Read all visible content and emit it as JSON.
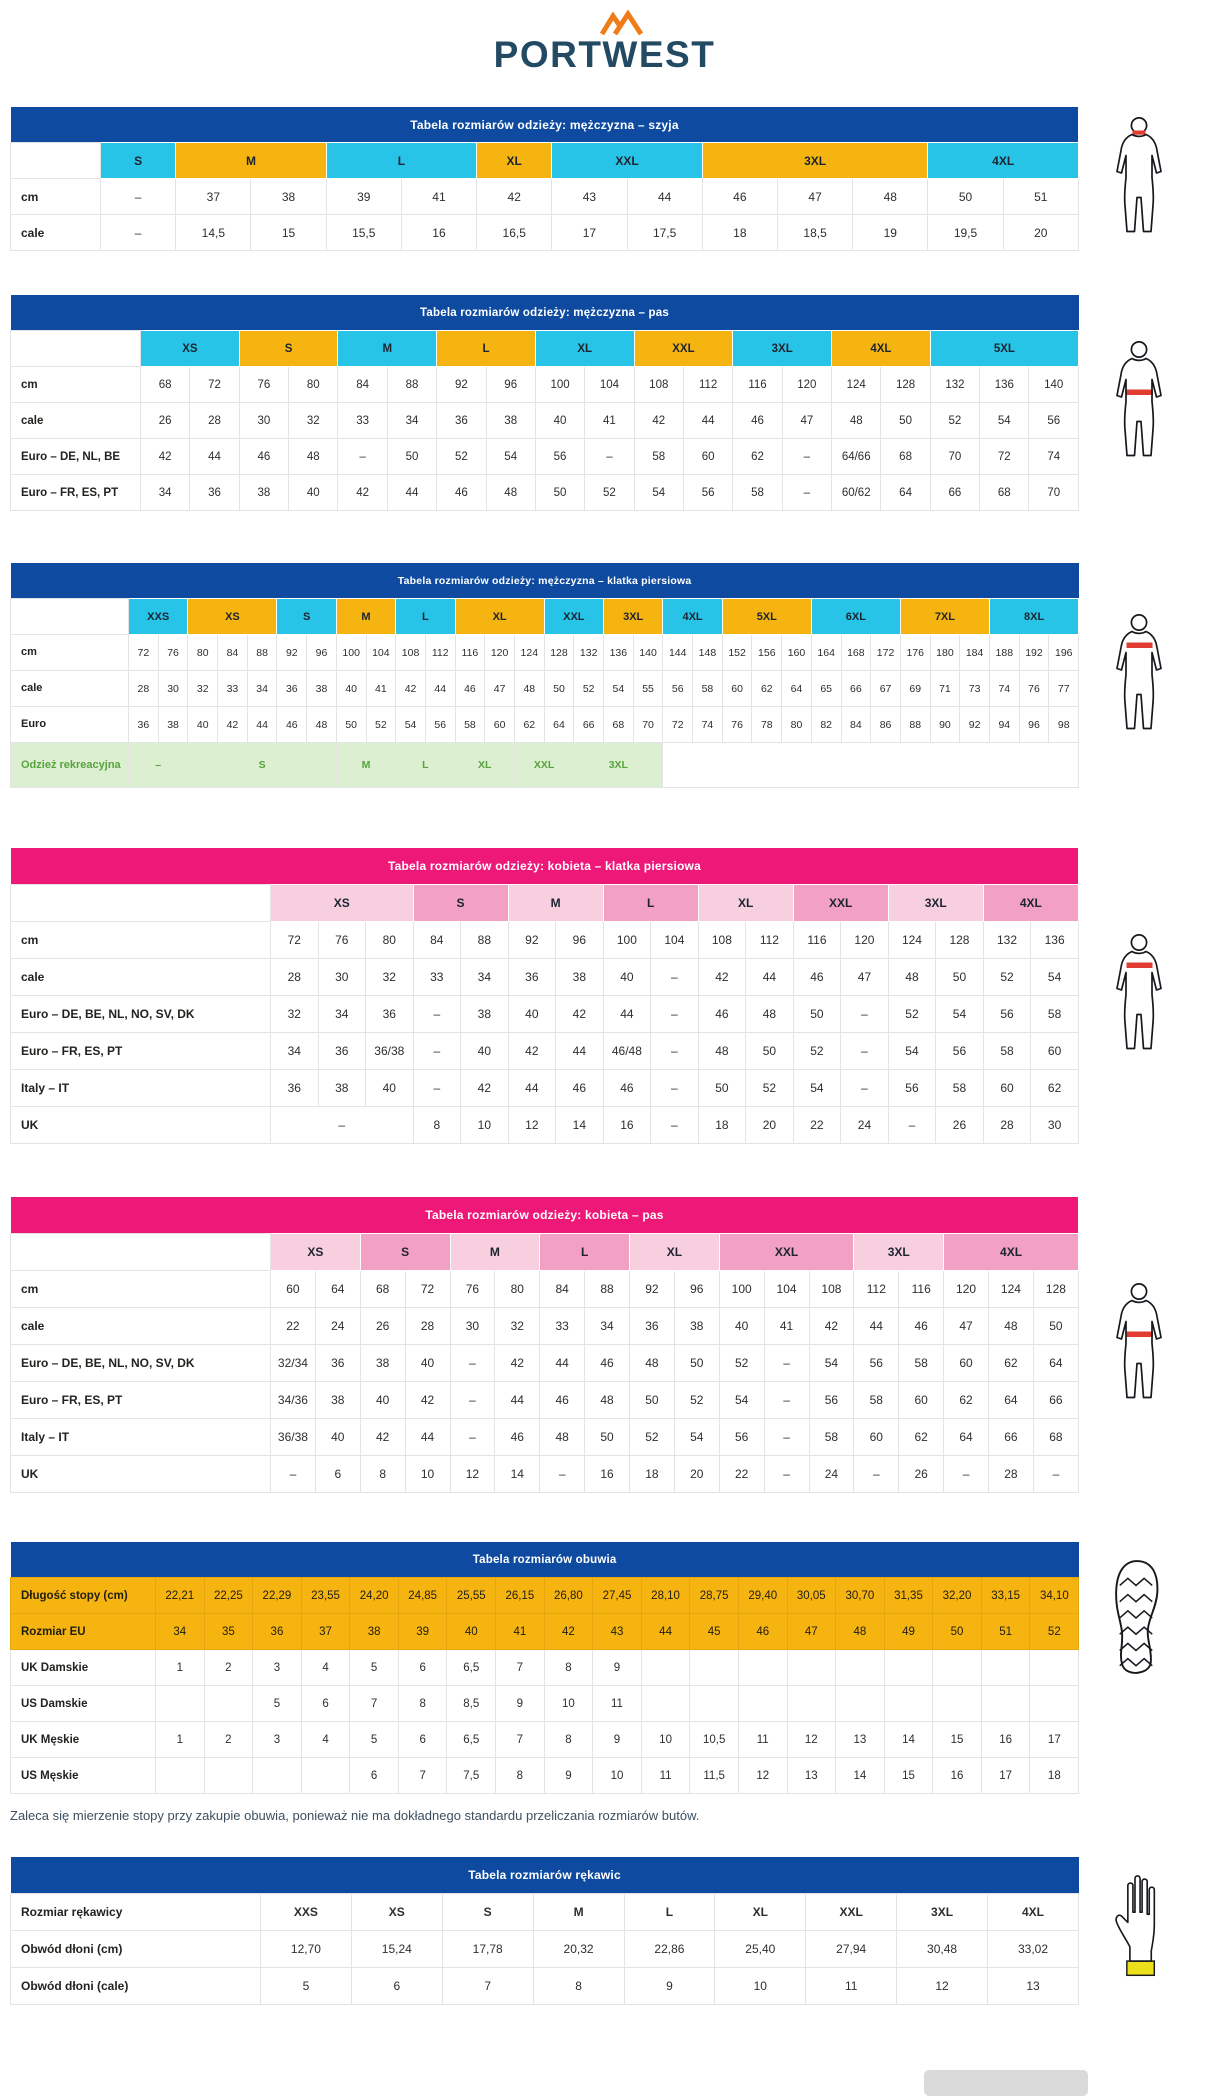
{
  "logo": {
    "brand": "PORTWEST"
  },
  "note": "Zaleca się mierzenie stopy przy zakupie obuwia, ponieważ nie ma dokładnego standardu przeliczania rozmiarów butów.",
  "colors": {
    "title_blue": "#0d4aa0",
    "title_pink": "#ee1878",
    "cyan": "#27c4e8",
    "amber": "#f6b411",
    "pink_light": "#f8cfdf",
    "pink_dark": "#f2a0c3",
    "rec_green_bg": "#dcefd0",
    "rec_green_text": "#57a33e",
    "highlight_red": "#e03c31",
    "glove_cuff_yellow": "#ecdf1b",
    "logo_navy": "#234a63",
    "logo_orange": "#ef7c16"
  },
  "tables": [
    {
      "category": "men",
      "figure": "male-neck",
      "title": "Tabela rozmiarów odzieży: mężczyzna – szyja",
      "header": [
        {
          "label": "S",
          "span": 1
        },
        {
          "label": "M",
          "span": 2
        },
        {
          "label": "L",
          "span": 2
        },
        {
          "label": "XL",
          "span": 1
        },
        {
          "label": "XXL",
          "span": 2
        },
        {
          "label": "3XL",
          "span": 3
        },
        {
          "label": "4XL",
          "span": 2
        }
      ],
      "rows": [
        {
          "label": "cm",
          "cells": [
            "–",
            "37",
            "38",
            "39",
            "41",
            "42",
            "43",
            "44",
            "46",
            "47",
            "48",
            "50",
            "51"
          ]
        },
        {
          "label": "cale",
          "cells": [
            "–",
            "14,5",
            "15",
            "15,5",
            "16",
            "16,5",
            "17",
            "17,5",
            "18",
            "18,5",
            "19",
            "19,5",
            "20"
          ]
        }
      ]
    },
    {
      "category": "men",
      "figure": "male-waist",
      "title": "Tabela rozmiarów odzieży: mężczyzna – pas",
      "header": [
        {
          "label": "XS",
          "span": 2
        },
        {
          "label": "S",
          "span": 2
        },
        {
          "label": "M",
          "span": 2
        },
        {
          "label": "L",
          "span": 2
        },
        {
          "label": "XL",
          "span": 2
        },
        {
          "label": "XXL",
          "span": 2
        },
        {
          "label": "3XL",
          "span": 2
        },
        {
          "label": "4XL",
          "span": 2
        },
        {
          "label": "5XL",
          "span": 3
        }
      ],
      "rows": [
        {
          "label": "cm",
          "cells": [
            "68",
            "72",
            "76",
            "80",
            "84",
            "88",
            "92",
            "96",
            "100",
            "104",
            "108",
            "112",
            "116",
            "120",
            "124",
            "128",
            "132",
            "136",
            "140"
          ]
        },
        {
          "label": "cale",
          "cells": [
            "26",
            "28",
            "30",
            "32",
            "33",
            "34",
            "36",
            "38",
            "40",
            "41",
            "42",
            "44",
            "46",
            "47",
            "48",
            "50",
            "52",
            "54",
            "56"
          ]
        },
        {
          "label": "Euro – DE, NL, BE",
          "cells": [
            "42",
            "44",
            "46",
            "48",
            "–",
            "50",
            "52",
            "54",
            "56",
            "–",
            "58",
            "60",
            "62",
            "–",
            "64/66",
            "68",
            "70",
            "72",
            "74"
          ]
        },
        {
          "label": "Euro – FR, ES, PT",
          "cells": [
            "34",
            "36",
            "38",
            "40",
            "42",
            "44",
            "46",
            "48",
            "50",
            "52",
            "54",
            "56",
            "58",
            "–",
            "60/62",
            "64",
            "66",
            "68",
            "70"
          ]
        }
      ]
    },
    {
      "category": "men",
      "figure": "male-chest",
      "title": "Tabela rozmiarów odzieży: mężczyzna – klatka piersiowa",
      "header": [
        {
          "label": "XXS",
          "span": 2
        },
        {
          "label": "XS",
          "span": 3
        },
        {
          "label": "S",
          "span": 2
        },
        {
          "label": "M",
          "span": 2
        },
        {
          "label": "L",
          "span": 2
        },
        {
          "label": "XL",
          "span": 3
        },
        {
          "label": "XXL",
          "span": 2
        },
        {
          "label": "3XL",
          "span": 2
        },
        {
          "label": "4XL",
          "span": 2
        },
        {
          "label": "5XL",
          "span": 3
        },
        {
          "label": "6XL",
          "span": 3
        },
        {
          "label": "7XL",
          "span": 3
        },
        {
          "label": "8XL",
          "span": 3
        }
      ],
      "rows": [
        {
          "label": "cm",
          "cells": [
            "72",
            "76",
            "80",
            "84",
            "88",
            "92",
            "96",
            "100",
            "104",
            "108",
            "112",
            "116",
            "120",
            "124",
            "128",
            "132",
            "136",
            "140",
            "144",
            "148",
            "152",
            "156",
            "160",
            "164",
            "168",
            "172",
            "176",
            "180",
            "184",
            "188",
            "192",
            "196"
          ]
        },
        {
          "label": "cale",
          "cells": [
            "28",
            "30",
            "32",
            "33",
            "34",
            "36",
            "38",
            "40",
            "41",
            "42",
            "44",
            "46",
            "47",
            "48",
            "50",
            "52",
            "54",
            "55",
            "56",
            "58",
            "60",
            "62",
            "64",
            "65",
            "66",
            "67",
            "69",
            "71",
            "73",
            "74",
            "76",
            "77"
          ]
        },
        {
          "label": "Euro",
          "cells": [
            "36",
            "38",
            "40",
            "42",
            "44",
            "46",
            "48",
            "50",
            "52",
            "54",
            "56",
            "58",
            "60",
            "62",
            "64",
            "66",
            "68",
            "70",
            "72",
            "74",
            "76",
            "78",
            "80",
            "82",
            "84",
            "86",
            "88",
            "90",
            "92",
            "94",
            "96",
            "98"
          ]
        },
        {
          "label": "Odzież rekreacyjna",
          "highlight": "green",
          "cells": [
            {
              "v": "–",
              "span": 2
            },
            {
              "v": "S",
              "span": 5
            },
            {
              "v": "M",
              "span": 2
            },
            {
              "v": "L",
              "span": 2
            },
            {
              "v": "XL",
              "span": 2
            },
            {
              "v": "XXL",
              "span": 2
            },
            {
              "v": "3XL",
              "span": 3
            },
            {
              "v": "",
              "span": 14
            }
          ]
        }
      ]
    },
    {
      "category": "women",
      "figure": "female-chest",
      "title": "Tabela rozmiarów odzieży: kobieta – klatka piersiowa",
      "header": [
        {
          "label": "XS",
          "span": 3
        },
        {
          "label": "S",
          "span": 2
        },
        {
          "label": "M",
          "span": 2
        },
        {
          "label": "L",
          "span": 2
        },
        {
          "label": "XL",
          "span": 2
        },
        {
          "label": "XXL",
          "span": 2
        },
        {
          "label": "3XL",
          "span": 2
        },
        {
          "label": "4XL",
          "span": 2
        }
      ],
      "rows": [
        {
          "label": "cm",
          "cells": [
            "72",
            "76",
            "80",
            "84",
            "88",
            "92",
            "96",
            "100",
            "104",
            "108",
            "112",
            "116",
            "120",
            "124",
            "128",
            "132",
            "136"
          ]
        },
        {
          "label": "cale",
          "cells": [
            "28",
            "30",
            "32",
            "33",
            "34",
            "36",
            "38",
            "40",
            "–",
            "42",
            "44",
            "46",
            "47",
            "48",
            "50",
            "52",
            "54"
          ]
        },
        {
          "label": "Euro – DE, BE, NL, NO, SV, DK",
          "cells": [
            "32",
            "34",
            "36",
            "–",
            "38",
            "40",
            "42",
            "44",
            "–",
            "46",
            "48",
            "50",
            "–",
            "52",
            "54",
            "56",
            "58"
          ]
        },
        {
          "label": "Euro – FR, ES, PT",
          "cells": [
            "34",
            "36",
            "36/38",
            "–",
            "40",
            "42",
            "44",
            "46/48",
            "–",
            "48",
            "50",
            "52",
            "–",
            "54",
            "56",
            "58",
            "60"
          ]
        },
        {
          "label": "Italy – IT",
          "cells": [
            "36",
            "38",
            "40",
            "–",
            "42",
            "44",
            "46",
            "46",
            "–",
            "50",
            "52",
            "54",
            "–",
            "56",
            "58",
            "60",
            "62"
          ]
        },
        {
          "label": "UK",
          "cells": [
            {
              "v": "–",
              "span": 3
            },
            "8",
            "10",
            "12",
            "14",
            "16",
            "–",
            "18",
            "20",
            "22",
            "24",
            "–",
            "26",
            "28",
            "30"
          ]
        }
      ]
    },
    {
      "category": "women",
      "figure": "female-waist",
      "title": "Tabela rozmiarów odzieży: kobieta – pas",
      "header": [
        {
          "label": "XS",
          "span": 2
        },
        {
          "label": "S",
          "span": 2
        },
        {
          "label": "M",
          "span": 2
        },
        {
          "label": "L",
          "span": 2
        },
        {
          "label": "XL",
          "span": 2
        },
        {
          "label": "XXL",
          "span": 3
        },
        {
          "label": "3XL",
          "span": 2
        },
        {
          "label": "4XL",
          "span": 3
        }
      ],
      "rows": [
        {
          "label": "cm",
          "cells": [
            "60",
            "64",
            "68",
            "72",
            "76",
            "80",
            "84",
            "88",
            "92",
            "96",
            "100",
            "104",
            "108",
            "112",
            "116",
            "120",
            "124",
            "128"
          ]
        },
        {
          "label": "cale",
          "cells": [
            "22",
            "24",
            "26",
            "28",
            "30",
            "32",
            "33",
            "34",
            "36",
            "38",
            "40",
            "41",
            "42",
            "44",
            "46",
            "47",
            "48",
            "50"
          ]
        },
        {
          "label": "Euro – DE, BE, NL, NO, SV, DK",
          "cells": [
            "32/34",
            "36",
            "38",
            "40",
            "–",
            "42",
            "44",
            "46",
            "48",
            "50",
            "52",
            "–",
            "54",
            "56",
            "58",
            "60",
            "62",
            "64"
          ]
        },
        {
          "label": "Euro – FR, ES, PT",
          "cells": [
            "34/36",
            "38",
            "40",
            "42",
            "–",
            "44",
            "46",
            "48",
            "50",
            "52",
            "54",
            "–",
            "56",
            "58",
            "60",
            "62",
            "64",
            "66"
          ]
        },
        {
          "label": "Italy – IT",
          "cells": [
            "36/38",
            "40",
            "42",
            "44",
            "–",
            "46",
            "48",
            "50",
            "52",
            "54",
            "56",
            "–",
            "58",
            "60",
            "62",
            "64",
            "66",
            "68"
          ]
        },
        {
          "label": "UK",
          "cells": [
            "–",
            "6",
            "8",
            "10",
            "12",
            "14",
            "–",
            "16",
            "18",
            "20",
            "22",
            "–",
            "24",
            "–",
            "26",
            "–",
            "28",
            "–"
          ]
        }
      ]
    },
    {
      "category": "footwear",
      "figure": "shoe",
      "title": "Tabela rozmiarów obuwia",
      "header": null,
      "rows": [
        {
          "label": "Długość stopy (cm)",
          "highlight": "amber",
          "cells": [
            "22,21",
            "22,25",
            "22,29",
            "23,55",
            "24,20",
            "24,85",
            "25,55",
            "26,15",
            "26,80",
            "27,45",
            "28,10",
            "28,75",
            "29,40",
            "30,05",
            "30,70",
            "31,35",
            "32,20",
            "33,15",
            "34,10"
          ]
        },
        {
          "label": "Rozmiar EU",
          "highlight": "amber",
          "cells": [
            "34",
            "35",
            "36",
            "37",
            "38",
            "39",
            "40",
            "41",
            "42",
            "43",
            "44",
            "45",
            "46",
            "47",
            "48",
            "49",
            "50",
            "51",
            "52"
          ]
        },
        {
          "label": "UK Damskie",
          "cells": [
            "1",
            "2",
            "3",
            "4",
            "5",
            "6",
            "6,5",
            "7",
            "8",
            "9",
            "",
            "",
            "",
            "",
            "",
            "",
            "",
            "",
            ""
          ]
        },
        {
          "label": "US Damskie",
          "cells": [
            "",
            "",
            "5",
            "6",
            "7",
            "8",
            "8,5",
            "9",
            "10",
            "11",
            "",
            "",
            "",
            "",
            "",
            "",
            "",
            "",
            ""
          ]
        },
        {
          "label": "UK Męskie",
          "cells": [
            "1",
            "2",
            "3",
            "4",
            "5",
            "6",
            "6,5",
            "7",
            "8",
            "9",
            "10",
            "10,5",
            "11",
            "12",
            "13",
            "14",
            "15",
            "16",
            "17"
          ]
        },
        {
          "label": "US Męskie",
          "cells": [
            "",
            "",
            "",
            "",
            "6",
            "7",
            "7,5",
            "8",
            "9",
            "10",
            "11",
            "11,5",
            "12",
            "13",
            "14",
            "15",
            "16",
            "17",
            "18"
          ]
        }
      ]
    },
    {
      "category": "gloves",
      "figure": "glove",
      "title": "Tabela rozmiarów rękawic",
      "header": null,
      "rows": [
        {
          "label": "Rozmiar rękawicy",
          "highlight": "strong",
          "cells": [
            "XXS",
            "XS",
            "S",
            "M",
            "L",
            "XL",
            "XXL",
            "3XL",
            "4XL"
          ]
        },
        {
          "label": "Obwód dłoni (cm)",
          "cells": [
            "12,70",
            "15,24",
            "17,78",
            "20,32",
            "22,86",
            "25,40",
            "27,94",
            "30,48",
            "33,02"
          ]
        },
        {
          "label": "Obwód dłoni (cale)",
          "cells": [
            "5",
            "6",
            "7",
            "8",
            "9",
            "10",
            "11",
            "12",
            "13"
          ]
        }
      ]
    }
  ]
}
